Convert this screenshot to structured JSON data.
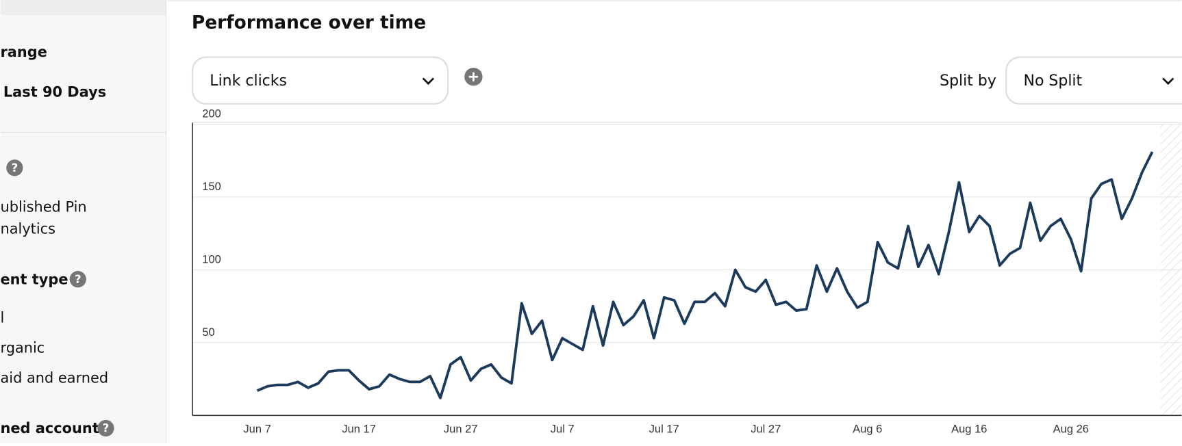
{
  "sidebar": {
    "date_range_title": "range",
    "date_range": "Last 90 Days",
    "pin_filter": [
      "ublished Pin",
      "nalytics"
    ],
    "content_type_title": "ent type",
    "content_types": [
      "l",
      "rganic",
      "aid and earned"
    ],
    "claimed_account_title": "ned account"
  },
  "main": {
    "title": "Performance over time",
    "metric": "Link clicks",
    "split_label": "Split by",
    "split": "No Split"
  },
  "chart_data": {
    "type": "line",
    "categories": [
      "Jun 7",
      null,
      null,
      null,
      null,
      null,
      null,
      null,
      null,
      null,
      "Jun 17",
      null,
      null,
      null,
      null,
      null,
      null,
      null,
      null,
      null,
      "Jun 27",
      null,
      null,
      null,
      null,
      null,
      null,
      null,
      null,
      null,
      "Jul 7",
      null,
      null,
      null,
      null,
      null,
      null,
      null,
      null,
      null,
      "Jul 17",
      null,
      null,
      null,
      null,
      null,
      null,
      null,
      null,
      null,
      "Jul 27",
      null,
      null,
      null,
      null,
      null,
      null,
      null,
      null,
      null,
      "Aug 6",
      null,
      null,
      null,
      null,
      null,
      null,
      null,
      null,
      null,
      "Aug 16",
      null,
      null,
      null,
      null,
      null,
      null,
      null,
      null,
      null,
      "Aug 26",
      null,
      null,
      null,
      null,
      null,
      null,
      null,
      null
    ],
    "values": [
      17,
      20,
      21,
      21,
      23,
      19,
      22,
      30,
      31,
      31,
      24,
      18,
      20,
      28,
      25,
      23,
      23,
      27,
      12,
      35,
      40,
      24,
      32,
      35,
      26,
      22,
      77,
      56,
      65,
      38,
      53,
      49,
      45,
      75,
      48,
      78,
      62,
      68,
      79,
      53,
      81,
      79,
      63,
      78,
      78,
      84,
      75,
      100,
      88,
      85,
      93,
      76,
      78,
      72,
      73,
      103,
      85,
      101,
      85,
      74,
      78,
      119,
      105,
      101,
      130,
      102,
      117,
      97,
      126,
      160,
      126,
      137,
      130,
      103,
      111,
      115,
      146,
      120,
      130,
      135,
      121,
      99,
      149,
      159,
      162,
      135,
      149,
      167,
      181
    ],
    "color": "#1b3a5c",
    "ylim": [
      0,
      200
    ],
    "yticks": [
      50,
      100,
      150,
      200
    ],
    "grid": true
  }
}
